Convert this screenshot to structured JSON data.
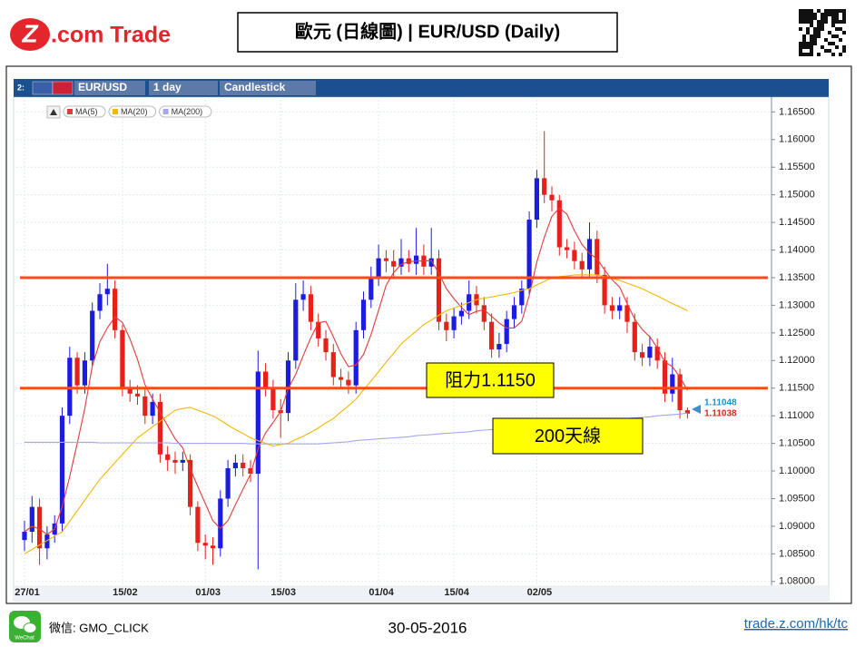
{
  "header": {
    "logo_mark": "Z",
    "logo_text": ".com Trade",
    "title": "歐元 (日線圖) | EUR/USD  (Daily)"
  },
  "toolbar": {
    "panel": "2:",
    "symbol": "EUR/USD",
    "period": "1 day",
    "style": "Candlestick"
  },
  "footer": {
    "wechat_icon": "WeChat",
    "wechat": "微信: GMO_CLICK",
    "date": "30-05-2016",
    "link": "trade.z.com/hk/tc"
  },
  "chart_data": {
    "type": "candlestick",
    "categories": [
      "27/01",
      null,
      null,
      null,
      null,
      null,
      null,
      null,
      null,
      null,
      null,
      null,
      null,
      "15/02",
      null,
      null,
      null,
      null,
      null,
      null,
      null,
      null,
      null,
      null,
      "01/03",
      null,
      null,
      null,
      null,
      null,
      null,
      null,
      null,
      null,
      "15/03",
      null,
      null,
      null,
      null,
      null,
      null,
      null,
      null,
      null,
      null,
      null,
      null,
      "01/04",
      null,
      null,
      null,
      null,
      null,
      null,
      null,
      null,
      null,
      "15/04",
      null,
      null,
      null,
      null,
      null,
      null,
      null,
      null,
      null,
      null,
      "02/05",
      null,
      null,
      null,
      null,
      null,
      null,
      null,
      null,
      null,
      null,
      null,
      null,
      null,
      null,
      null,
      null,
      null,
      null,
      null,
      null
    ],
    "open": [
      1.0875,
      1.089,
      1.0935,
      1.086,
      1.0885,
      1.0905,
      1.11,
      1.1205,
      1.1155,
      1.12,
      1.129,
      1.132,
      1.133,
      1.1255,
      1.115,
      1.114,
      1.1135,
      1.11,
      1.1125,
      1.103,
      1.102,
      1.1015,
      1.102,
      1.0935,
      1.087,
      1.0865,
      1.086,
      1.095,
      1.1005,
      1.1015,
      1.1005,
      1.0995,
      1.118,
      1.115,
      1.111,
      1.1105,
      1.12,
      1.131,
      1.132,
      1.127,
      1.124,
      1.1215,
      1.117,
      1.1165,
      1.1155,
      1.1255,
      1.131,
      1.135,
      1.1385,
      1.138,
      1.137,
      1.1385,
      1.1375,
      1.139,
      1.137,
      1.1385,
      1.127,
      1.1255,
      1.128,
      1.129,
      1.132,
      1.13,
      1.127,
      1.122,
      1.123,
      1.1275,
      1.13,
      1.133,
      1.1455,
      1.153,
      1.15,
      1.149,
      1.1405,
      1.14,
      1.138,
      1.1365,
      1.142,
      1.1355,
      1.13,
      1.129,
      1.13,
      1.127,
      1.1215,
      1.1205,
      1.1225,
      1.12,
      1.114,
      1.1175,
      1.111
    ],
    "high": [
      1.091,
      1.0955,
      1.095,
      1.09,
      1.092,
      1.1115,
      1.1225,
      1.1215,
      1.1215,
      1.1305,
      1.134,
      1.1375,
      1.1345,
      1.1265,
      1.1165,
      1.1155,
      1.115,
      1.114,
      1.114,
      1.1045,
      1.1035,
      1.1035,
      1.103,
      1.0945,
      1.0885,
      1.088,
      1.0965,
      1.102,
      1.103,
      1.103,
      1.102,
      1.1218,
      1.1195,
      1.1165,
      1.113,
      1.1215,
      1.134,
      1.1345,
      1.1335,
      1.1285,
      1.1255,
      1.123,
      1.1185,
      1.118,
      1.127,
      1.1325,
      1.137,
      1.141,
      1.14,
      1.14,
      1.142,
      1.14,
      1.144,
      1.141,
      1.144,
      1.14,
      1.1285,
      1.1295,
      1.1305,
      1.1345,
      1.1335,
      1.1315,
      1.1285,
      1.125,
      1.129,
      1.1315,
      1.1345,
      1.147,
      1.1545,
      1.1615,
      1.1515,
      1.15,
      1.142,
      1.1415,
      1.1395,
      1.145,
      1.1435,
      1.137,
      1.1315,
      1.1315,
      1.1315,
      1.1285,
      1.123,
      1.1245,
      1.124,
      1.1215,
      1.1205,
      1.1185,
      1.1115
    ],
    "low": [
      1.0855,
      1.087,
      1.083,
      1.084,
      1.087,
      1.089,
      1.1085,
      1.114,
      1.114,
      1.119,
      1.1275,
      1.13,
      1.124,
      1.1135,
      1.1125,
      1.112,
      1.1085,
      1.1085,
      1.1015,
      1.1,
      1.0995,
      1.1,
      1.092,
      1.0855,
      1.084,
      1.083,
      1.0845,
      1.0935,
      1.099,
      1.099,
      1.098,
      1.0822,
      1.1135,
      1.1095,
      1.106,
      1.109,
      1.1185,
      1.129,
      1.1255,
      1.1225,
      1.12,
      1.1155,
      1.115,
      1.114,
      1.114,
      1.124,
      1.1295,
      1.1335,
      1.136,
      1.135,
      1.1355,
      1.136,
      1.1355,
      1.1355,
      1.1355,
      1.1255,
      1.1235,
      1.124,
      1.1265,
      1.1275,
      1.1285,
      1.1255,
      1.1205,
      1.1205,
      1.1215,
      1.126,
      1.1285,
      1.132,
      1.144,
      1.1485,
      1.147,
      1.139,
      1.1385,
      1.1365,
      1.135,
      1.135,
      1.134,
      1.1285,
      1.1275,
      1.1275,
      1.125,
      1.12,
      1.119,
      1.119,
      1.1185,
      1.1125,
      1.1125,
      1.1095,
      1.1095
    ],
    "close": [
      1.089,
      1.0935,
      1.086,
      1.0885,
      1.0905,
      1.11,
      1.1205,
      1.1155,
      1.12,
      1.129,
      1.132,
      1.133,
      1.1255,
      1.115,
      1.114,
      1.1135,
      1.11,
      1.1125,
      1.103,
      1.102,
      1.1015,
      1.102,
      1.0935,
      1.087,
      1.0865,
      1.086,
      1.095,
      1.1005,
      1.1015,
      1.1005,
      1.0995,
      1.118,
      1.115,
      1.111,
      1.1105,
      1.12,
      1.131,
      1.132,
      1.127,
      1.124,
      1.1215,
      1.117,
      1.1165,
      1.1155,
      1.1255,
      1.131,
      1.135,
      1.1385,
      1.138,
      1.137,
      1.1385,
      1.1375,
      1.139,
      1.137,
      1.1385,
      1.127,
      1.1255,
      1.128,
      1.129,
      1.132,
      1.13,
      1.127,
      1.122,
      1.123,
      1.1275,
      1.13,
      1.133,
      1.1455,
      1.153,
      1.15,
      1.149,
      1.1405,
      1.14,
      1.138,
      1.1365,
      1.142,
      1.1355,
      1.13,
      1.129,
      1.13,
      1.127,
      1.1215,
      1.1205,
      1.1225,
      1.12,
      1.114,
      1.1175,
      1.111,
      1.11038
    ],
    "up_color": "#1c1ce0",
    "down_color": "#e8201a",
    "series": [
      {
        "name": "MA(5)",
        "color": "#e33a3a",
        "values": [
          1.089,
          1.09,
          1.0895,
          1.0885,
          1.0895,
          1.0935,
          1.099,
          1.105,
          1.1113,
          1.119,
          1.1234,
          1.1259,
          1.1279,
          1.1269,
          1.1239,
          1.1202,
          1.1156,
          1.113,
          1.1106,
          1.1082,
          1.1058,
          1.1042,
          1.1004,
          1.0972,
          1.0941,
          1.091,
          1.0896,
          1.091,
          1.0939,
          1.0967,
          1.0994,
          1.104,
          1.1069,
          1.1088,
          1.1108,
          1.1149,
          1.1175,
          1.1209,
          1.1241,
          1.1268,
          1.1271,
          1.1243,
          1.1212,
          1.1189,
          1.1192,
          1.1211,
          1.1247,
          1.1291,
          1.1336,
          1.1359,
          1.1374,
          1.1379,
          1.138,
          1.138,
          1.1381,
          1.1358,
          1.133,
          1.1312,
          1.1296,
          1.1283,
          1.1289,
          1.1292,
          1.128,
          1.1268,
          1.1259,
          1.1259,
          1.1271,
          1.1318,
          1.1378,
          1.1423,
          1.1461,
          1.1476,
          1.1465,
          1.1435,
          1.141,
          1.1394,
          1.1384,
          1.1364,
          1.1346,
          1.1333,
          1.1303,
          1.1275,
          1.1256,
          1.1243,
          1.1223,
          1.1197,
          1.1189,
          1.117,
          1.1146
        ]
      },
      {
        "name": "MA(20)",
        "color": "#f5b800",
        "values": [
          1.085,
          1.0858,
          1.0866,
          1.0874,
          1.0882,
          1.089,
          1.0909,
          1.0928,
          1.0947,
          1.0966,
          1.0985,
          1.1,
          1.1015,
          1.103,
          1.1045,
          1.106,
          1.107,
          1.108,
          1.109,
          1.11,
          1.111,
          1.1113,
          1.1115,
          1.111,
          1.1105,
          1.11,
          1.1092,
          1.1083,
          1.1075,
          1.1068,
          1.106,
          1.1055,
          1.105,
          1.1045,
          1.1048,
          1.105,
          1.1057,
          1.1063,
          1.107,
          1.1078,
          1.1087,
          1.1095,
          1.1107,
          1.1118,
          1.113,
          1.1147,
          1.1163,
          1.118,
          1.1197,
          1.1213,
          1.123,
          1.1242,
          1.1253,
          1.1265,
          1.1273,
          1.1282,
          1.129,
          1.1295,
          1.13,
          1.1305,
          1.131,
          1.1313,
          1.1315,
          1.1318,
          1.132,
          1.1323,
          1.1327,
          1.133,
          1.1337,
          1.1343,
          1.135,
          1.1352,
          1.1353,
          1.1355,
          1.1355,
          1.1355,
          1.1355,
          1.1352,
          1.1348,
          1.1345,
          1.134,
          1.1335,
          1.133,
          1.1323,
          1.1317,
          1.131,
          1.1303,
          1.1297,
          1.129
        ]
      },
      {
        "name": "MA(200)",
        "color": "#a6a6ee",
        "values": [
          1.1052,
          1.1052,
          1.1052,
          1.1052,
          1.1052,
          1.1052,
          1.1052,
          1.1052,
          1.1052,
          1.1052,
          1.1051,
          1.1051,
          1.1051,
          1.1051,
          1.1051,
          1.1051,
          1.1051,
          1.1051,
          1.1051,
          1.1051,
          1.105,
          1.105,
          1.105,
          1.105,
          1.105,
          1.105,
          1.105,
          1.105,
          1.105,
          1.105,
          1.1049,
          1.1049,
          1.1049,
          1.1049,
          1.1049,
          1.1049,
          1.1049,
          1.1049,
          1.1049,
          1.1049,
          1.105,
          1.1051,
          1.1052,
          1.1053,
          1.1055,
          1.1056,
          1.1057,
          1.1058,
          1.1059,
          1.106,
          1.1061,
          1.1062,
          1.1064,
          1.1065,
          1.1066,
          1.1067,
          1.1068,
          1.1069,
          1.107,
          1.1071,
          1.1073,
          1.1074,
          1.1075,
          1.1076,
          1.1077,
          1.1078,
          1.1079,
          1.108,
          1.1082,
          1.1083,
          1.1084,
          1.1085,
          1.1086,
          1.1087,
          1.1088,
          1.1089,
          1.1091,
          1.1092,
          1.1093,
          1.1094,
          1.1095,
          1.1096,
          1.1097,
          1.1098,
          1.11,
          1.1101,
          1.1102,
          1.1103,
          1.11048
        ]
      }
    ],
    "ylim": [
      1.0798,
      1.1667
    ],
    "yticks": [
      {
        "value": 1.08,
        "label": "1.08000"
      },
      {
        "value": 1.085,
        "label": "1.08500"
      },
      {
        "value": 1.09,
        "label": "1.09000"
      },
      {
        "value": 1.095,
        "label": "1.09500"
      },
      {
        "value": 1.1,
        "label": "1.10000"
      },
      {
        "value": 1.105,
        "label": "1.10500"
      },
      {
        "value": 1.11,
        "label": "1.11000"
      },
      {
        "value": 1.115,
        "label": "1.11500"
      },
      {
        "value": 1.12,
        "label": "1.12000"
      },
      {
        "value": 1.125,
        "label": "1.12500"
      },
      {
        "value": 1.13,
        "label": "1.13000"
      },
      {
        "value": 1.135,
        "label": "1.13500"
      },
      {
        "value": 1.14,
        "label": "1.14000"
      },
      {
        "value": 1.145,
        "label": "1.14500"
      },
      {
        "value": 1.15,
        "label": "1.15000"
      },
      {
        "value": 1.155,
        "label": "1.15500"
      },
      {
        "value": 1.16,
        "label": "1.16000"
      },
      {
        "value": 1.165,
        "label": "1.16500"
      }
    ],
    "grid": true,
    "hlines": [
      1.135,
      1.115
    ],
    "hline_color": "#ff4a1c",
    "annotations": [
      "阻力1.1150",
      "200天線"
    ]
  }
}
